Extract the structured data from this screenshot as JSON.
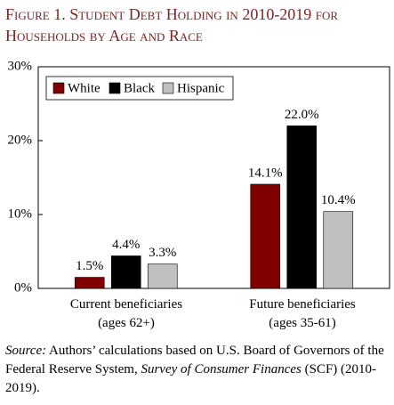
{
  "chart_data": {
    "type": "bar",
    "title": "Figure 1. Student Debt Holding in 2010-2019 for Households by Age and Race",
    "categories": [
      "Current beneficiaries (ages 62+)",
      "Future beneficiaries (ages 35-61)"
    ],
    "series": [
      {
        "name": "White",
        "color": "#7f0000",
        "values": [
          1.5,
          14.1
        ],
        "value_labels": [
          "1.5%",
          "14.1%"
        ]
      },
      {
        "name": "Black",
        "color": "#000000",
        "values": [
          4.4,
          22.0
        ],
        "value_labels": [
          "4.4%",
          "22.0%"
        ]
      },
      {
        "name": "Hispanic",
        "color": "#c0c0c0",
        "values": [
          3.3,
          10.4
        ],
        "value_labels": [
          "3.3%",
          "10.4%"
        ]
      }
    ],
    "ylim": [
      0,
      30
    ],
    "yticks": [
      {
        "value": 0,
        "label": "0%"
      },
      {
        "value": 10,
        "label": "10%"
      },
      {
        "value": 20,
        "label": "20%"
      },
      {
        "value": 30,
        "label": "30%"
      }
    ],
    "legend": "top-left",
    "source": [
      "Source:",
      " Authors’ calculations based on U.S. Board of Governors of the Federal Reserve System, ",
      "Survey of Consumer Finances",
      " (SCF) (2010-2019)."
    ]
  }
}
